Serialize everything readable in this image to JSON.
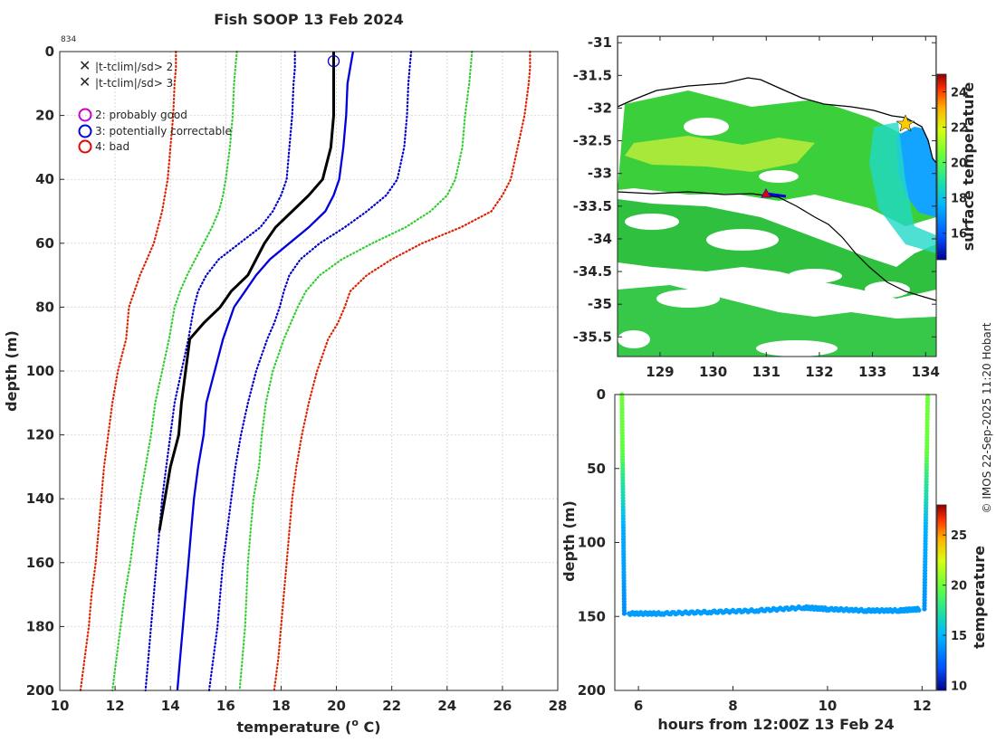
{
  "chart_data": [
    {
      "id": "profile",
      "type": "line",
      "title": "Fish SOOP 13 Feb 2024",
      "annotation": "834",
      "xlabel": "temperature (",
      "xlabel_sup": "o",
      "xlabel_end": " C)",
      "ylabel": "depth (m)",
      "xlim": [
        10,
        28
      ],
      "ylim": [
        0,
        200
      ],
      "y_reversed": true,
      "xticks": [
        10,
        12,
        14,
        16,
        18,
        20,
        22,
        24,
        26,
        28
      ],
      "yticks": [
        0,
        20,
        40,
        60,
        80,
        100,
        120,
        140,
        160,
        180,
        200
      ],
      "grid": true,
      "legend": {
        "position": "top-left",
        "entries": [
          {
            "marker": "x",
            "color": "#00cc00",
            "label": "|t-tclim|/sd> 2"
          },
          {
            "marker": "x",
            "color": "#dd0000",
            "label": "|t-tclim|/sd> 3"
          },
          {
            "marker": "o",
            "color": "#cc00cc",
            "label": "2: probably good"
          },
          {
            "marker": "o",
            "color": "#0000dd",
            "label": "3: potentially correctable"
          },
          {
            "marker": "o",
            "color": "#ee0000",
            "label": "4: bad"
          }
        ]
      },
      "depths": [
        0,
        5,
        10,
        20,
        30,
        40,
        45,
        50,
        55,
        60,
        65,
        70,
        75,
        80,
        85,
        90,
        100,
        110,
        120,
        130,
        140,
        150,
        160,
        170,
        180,
        190,
        200
      ],
      "series": [
        {
          "name": "climatology -3sd",
          "color": "#dd2200",
          "style": "dotted",
          "temps": [
            14.2,
            14.2,
            14.15,
            14.1,
            14.0,
            13.9,
            13.8,
            13.7,
            13.55,
            13.4,
            13.15,
            12.9,
            12.7,
            12.5,
            12.45,
            12.4,
            12.1,
            11.9,
            11.75,
            11.6,
            11.5,
            11.4,
            11.3,
            11.15,
            11.05,
            10.9,
            10.75
          ]
        },
        {
          "name": "climatology -2sd",
          "color": "#33cc33",
          "style": "dotted",
          "temps": [
            16.4,
            16.35,
            16.3,
            16.25,
            16.15,
            16.0,
            15.9,
            15.75,
            15.5,
            15.2,
            14.9,
            14.6,
            14.35,
            14.15,
            14.05,
            13.95,
            13.7,
            13.45,
            13.3,
            13.1,
            12.9,
            12.7,
            12.55,
            12.35,
            12.2,
            12.05,
            11.9
          ]
        },
        {
          "name": "climatology -1sd",
          "color": "#0000cc",
          "style": "dotted",
          "temps": [
            18.5,
            18.5,
            18.45,
            18.4,
            18.3,
            18.2,
            18.0,
            17.7,
            17.25,
            16.5,
            15.75,
            15.3,
            15.0,
            14.85,
            14.75,
            14.65,
            14.4,
            14.15,
            14.0,
            13.85,
            13.7,
            13.6,
            13.5,
            13.4,
            13.3,
            13.2,
            13.1
          ]
        },
        {
          "name": "climatology mean",
          "color": "#0000dd",
          "style": "solid",
          "temps": [
            20.6,
            20.5,
            20.4,
            20.35,
            20.25,
            20.1,
            19.9,
            19.6,
            19.0,
            18.3,
            17.6,
            17.1,
            16.7,
            16.3,
            16.1,
            15.9,
            15.6,
            15.3,
            15.2,
            15.0,
            14.85,
            14.75,
            14.65,
            14.55,
            14.45,
            14.35,
            14.25
          ]
        },
        {
          "name": "climatology +1sd",
          "color": "#0000cc",
          "style": "dotted",
          "temps": [
            22.7,
            22.65,
            22.6,
            22.55,
            22.45,
            22.2,
            21.8,
            21.1,
            20.3,
            19.4,
            18.7,
            18.3,
            18.1,
            17.95,
            17.75,
            17.5,
            17.1,
            16.8,
            16.55,
            16.35,
            16.2,
            16.05,
            15.9,
            15.8,
            15.7,
            15.55,
            15.4
          ]
        },
        {
          "name": "climatology +2sd",
          "color": "#33cc33",
          "style": "dotted",
          "temps": [
            24.9,
            24.85,
            24.8,
            24.65,
            24.55,
            24.3,
            24.0,
            23.4,
            22.5,
            21.3,
            20.2,
            19.4,
            18.9,
            18.6,
            18.35,
            18.1,
            17.7,
            17.45,
            17.3,
            17.2,
            17.0,
            16.9,
            16.8,
            16.75,
            16.7,
            16.6,
            16.5
          ]
        },
        {
          "name": "climatology +3sd",
          "color": "#dd2200",
          "style": "dotted",
          "temps": [
            27.0,
            27.0,
            26.95,
            26.8,
            26.55,
            26.3,
            26.0,
            25.6,
            24.5,
            23.1,
            22.0,
            21.1,
            20.5,
            20.3,
            20.05,
            19.7,
            19.3,
            19.0,
            18.75,
            18.55,
            18.4,
            18.3,
            18.2,
            18.1,
            18.0,
            17.9,
            17.75
          ]
        }
      ],
      "observed": {
        "name": "observed profile",
        "color": "#000000",
        "temps": [
          19.9,
          19.9,
          19.9,
          19.9,
          19.8,
          19.5,
          19.0,
          18.4,
          17.8,
          17.4,
          17.1,
          16.8,
          16.2,
          15.8,
          15.2,
          14.7,
          14.55,
          14.4,
          14.3,
          14.0,
          13.8,
          13.6
        ],
        "depths": [
          0,
          5,
          10,
          20,
          30,
          40,
          45,
          50,
          55,
          60,
          65,
          70,
          75,
          80,
          85,
          90,
          100,
          110,
          120,
          130,
          140,
          150
        ]
      },
      "flag_marker": {
        "color": "#0000cc",
        "temp": 19.9,
        "depth": 3
      }
    },
    {
      "id": "map",
      "type": "heatmap",
      "xlim": [
        128.2,
        134.2
      ],
      "ylim": [
        -35.8,
        -30.9
      ],
      "xticks": [
        129,
        130,
        131,
        132,
        133,
        134
      ],
      "yticks": [
        -31,
        -31.5,
        -32,
        -32.5,
        -33,
        -33.5,
        -34,
        -34.5,
        -35,
        -35.5
      ],
      "colorbar_label": "surface temperature",
      "colorbar_range": [
        14.5,
        25
      ],
      "colorbar_ticks": [
        16,
        18,
        20,
        22,
        24
      ],
      "track_marker": {
        "lon": 130.95,
        "lat": -33.35,
        "color": "#dd0000"
      }
    },
    {
      "id": "timeseries",
      "type": "scatter",
      "xlabel": "hours from 12:00Z 13 Feb 24",
      "ylabel": "depth (m)",
      "xlim": [
        5.5,
        12.3
      ],
      "ylim": [
        0,
        200
      ],
      "y_reversed": true,
      "xticks": [
        6,
        8,
        10,
        12
      ],
      "yticks": [
        0,
        50,
        100,
        150,
        200
      ],
      "colorbar_label": "temperature",
      "colorbar_range": [
        9.5,
        28
      ],
      "colorbar_ticks": [
        10,
        15,
        20,
        25
      ],
      "descent": {
        "hour_start": 5.65,
        "hour_end": 5.7,
        "depth_end": 148
      },
      "bottom": {
        "hours": [
          5.8,
          6.5,
          7.5,
          8.5,
          9.5,
          10.0,
          10.8,
          11.5,
          11.95
        ],
        "depths": [
          148,
          148,
          147,
          146,
          144,
          145,
          146,
          146,
          145
        ]
      },
      "ascent": {
        "hour_start": 12.05,
        "hour_end": 12.12,
        "depth_end": 0
      }
    }
  ],
  "side_text": "© IMOS 22-Sep-2025 11:20 Hobart"
}
